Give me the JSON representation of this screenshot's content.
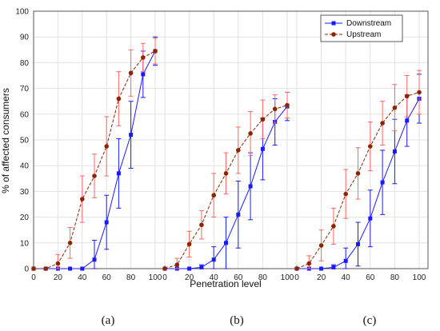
{
  "chart_data": {
    "type": "line",
    "ylabel": "% of affected consumers",
    "xlabel": "Penetration level",
    "ylim": [
      0,
      100
    ],
    "yticks": [
      0,
      10,
      20,
      30,
      40,
      50,
      60,
      70,
      80,
      90,
      100
    ],
    "xticks": [
      0,
      20,
      40,
      60,
      80,
      100
    ],
    "grid": true,
    "legend_position": "top-right",
    "legend": [
      "Downstream",
      "Upstream"
    ],
    "colors": {
      "Downstream": "#1a1aff",
      "Upstream": "#8b2500",
      "upstream_error": "#ff6666"
    },
    "x": [
      0,
      10,
      20,
      30,
      40,
      50,
      60,
      70,
      80,
      90,
      100
    ],
    "panels": [
      {
        "label": "(a)",
        "series": [
          {
            "name": "Downstream",
            "values": [
              0,
              0,
              0,
              0,
              0,
              3.5,
              18,
              37,
              52,
              75.5,
              84.5
            ],
            "err": [
              0,
              0,
              0,
              0,
              0,
              7.5,
              10.5,
              13.5,
              13,
              9,
              5.5
            ]
          },
          {
            "name": "Upstream",
            "values": [
              0,
              0,
              2,
              10,
              27,
              36,
              47.5,
              66,
              76,
              82,
              84.5
            ],
            "err": [
              0,
              0,
              3.5,
              6,
              9,
              8.5,
              11.5,
              10.5,
              9,
              5.5,
              5
            ]
          }
        ]
      },
      {
        "label": "(b)",
        "series": [
          {
            "name": "Downstream",
            "values": [
              0,
              0,
              0,
              0.5,
              3.5,
              10,
              21,
              32,
              46.5,
              57,
              63
            ],
            "err": [
              0,
              0,
              0,
              1,
              5,
              10,
              13,
              13,
              12,
              9,
              5.5
            ]
          },
          {
            "name": "Upstream",
            "values": [
              0,
              1.5,
              9.5,
              17,
              28.5,
              37,
              46,
              52.5,
              58,
              62,
              63.5
            ],
            "err": [
              0,
              2.5,
              5,
              5.5,
              8.5,
              8,
              9,
              8.5,
              7.5,
              5.5,
              5
            ]
          }
        ]
      },
      {
        "label": "(c)",
        "series": [
          {
            "name": "Downstream",
            "values": [
              0,
              0,
              0,
              0.5,
              3,
              9.5,
              19.5,
              33.5,
              45.5,
              57.5,
              66
            ],
            "err": [
              0,
              0,
              0,
              1,
              5,
              8.5,
              11,
              12.5,
              12.5,
              10,
              9.5
            ]
          },
          {
            "name": "Upstream",
            "values": [
              0,
              2,
              9,
              16.5,
              29,
              37,
              47.5,
              56.5,
              62.5,
              67,
              68.5
            ],
            "err": [
              0,
              3,
              6,
              7,
              9.5,
              10,
              9.5,
              8.5,
              9,
              8,
              8.5
            ]
          }
        ]
      }
    ]
  }
}
